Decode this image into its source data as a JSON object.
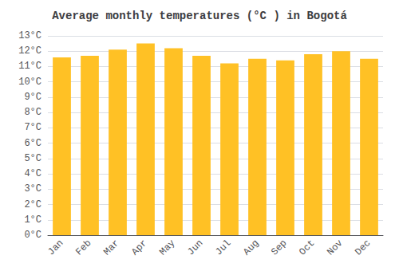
{
  "chart_data": {
    "type": "bar",
    "title": "Average monthly temperatures (°C ) in Bogotá",
    "categories": [
      "Jan",
      "Feb",
      "Mar",
      "Apr",
      "May",
      "Jun",
      "Jul",
      "Aug",
      "Sep",
      "Oct",
      "Nov",
      "Dec"
    ],
    "values": [
      11.6,
      11.7,
      12.1,
      12.5,
      12.2,
      11.7,
      11.2,
      11.5,
      11.4,
      11.8,
      12.0,
      11.5
    ],
    "color": "#FFC125",
    "ylim": [
      0,
      13
    ],
    "yticks": [
      {
        "value": 0,
        "label": "0°C"
      },
      {
        "value": 1,
        "label": "1°C"
      },
      {
        "value": 2,
        "label": "2°C"
      },
      {
        "value": 3,
        "label": "3°C"
      },
      {
        "value": 4,
        "label": "4°C"
      },
      {
        "value": 5,
        "label": "5°C"
      },
      {
        "value": 6,
        "label": "6°C"
      },
      {
        "value": 7,
        "label": "7°C"
      },
      {
        "value": 8,
        "label": "8°C"
      },
      {
        "value": 9,
        "label": "9°C"
      },
      {
        "value": 10,
        "label": "10°C"
      },
      {
        "value": 11,
        "label": "11°C"
      },
      {
        "value": 12,
        "label": "12°C"
      },
      {
        "value": 13,
        "label": "13°C"
      }
    ],
    "grid": true
  }
}
